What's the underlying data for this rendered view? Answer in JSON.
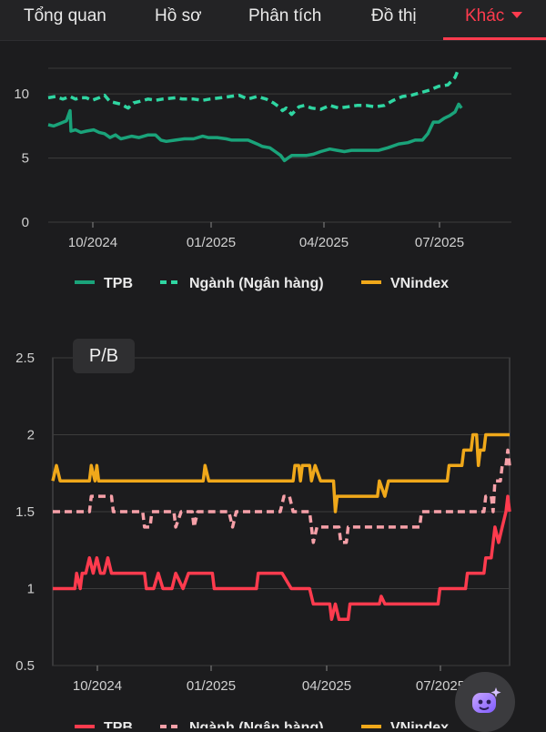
{
  "nav": {
    "tabs": [
      {
        "label": "Tổng quan"
      },
      {
        "label": "Hồ sơ"
      },
      {
        "label": "Phân tích"
      },
      {
        "label": "Đồ thị"
      },
      {
        "label": "Khác"
      }
    ],
    "active_tab": "Khác",
    "accent_color": "#ff3b4e"
  },
  "chart_data": [
    {
      "type": "line",
      "title": "",
      "xlabel": "",
      "ylabel": "",
      "y_ticks": [
        "0",
        "5",
        "10"
      ],
      "ylim": [
        0,
        12
      ],
      "x_ticks": [
        "10/2024",
        "01/2025",
        "04/2025",
        "07/2025"
      ],
      "legend_placement": "bottom",
      "series": [
        {
          "name": "TPB",
          "color": "#1aa37a",
          "style": "solid",
          "points": [
            [
              0,
              7.6
            ],
            [
              6,
              7.5
            ],
            [
              13,
              7.7
            ],
            [
              20,
              7.9
            ],
            [
              24,
              8.7
            ],
            [
              25,
              7.1
            ],
            [
              30,
              7.2
            ],
            [
              36,
              7.0
            ],
            [
              42,
              7.1
            ],
            [
              50,
              7.2
            ],
            [
              56,
              7.0
            ],
            [
              62,
              6.9
            ],
            [
              68,
              6.6
            ],
            [
              74,
              6.8
            ],
            [
              80,
              6.5
            ],
            [
              86,
              6.6
            ],
            [
              92,
              6.7
            ],
            [
              100,
              6.6
            ],
            [
              110,
              6.8
            ],
            [
              118,
              6.8
            ],
            [
              124,
              6.4
            ],
            [
              130,
              6.3
            ],
            [
              140,
              6.4
            ],
            [
              150,
              6.5
            ],
            [
              160,
              6.5
            ],
            [
              170,
              6.7
            ],
            [
              176,
              6.6
            ],
            [
              186,
              6.6
            ],
            [
              196,
              6.5
            ],
            [
              202,
              6.4
            ],
            [
              210,
              6.4
            ],
            [
              220,
              6.4
            ],
            [
              230,
              6.1
            ],
            [
              236,
              5.9
            ],
            [
              244,
              5.8
            ],
            [
              250,
              5.5
            ],
            [
              256,
              5.2
            ],
            [
              260,
              4.8
            ],
            [
              264,
              5.0
            ],
            [
              268,
              5.2
            ],
            [
              274,
              5.2
            ],
            [
              284,
              5.2
            ],
            [
              292,
              5.3
            ],
            [
              300,
              5.5
            ],
            [
              310,
              5.7
            ],
            [
              318,
              5.6
            ],
            [
              326,
              5.5
            ],
            [
              334,
              5.6
            ],
            [
              344,
              5.6
            ],
            [
              354,
              5.6
            ],
            [
              364,
              5.6
            ],
            [
              374,
              5.8
            ],
            [
              386,
              6.1
            ],
            [
              396,
              6.2
            ],
            [
              404,
              6.4
            ],
            [
              412,
              6.4
            ],
            [
              418,
              6.9
            ],
            [
              424,
              7.8
            ],
            [
              430,
              7.8
            ],
            [
              436,
              8.1
            ],
            [
              442,
              8.3
            ],
            [
              448,
              8.6
            ],
            [
              452,
              9.2
            ],
            [
              455,
              8.9
            ]
          ]
        },
        {
          "name": "Ngành (Ngân hàng)",
          "color": "#2fd6a2",
          "style": "dashed",
          "points": [
            [
              0,
              9.7
            ],
            [
              8,
              9.8
            ],
            [
              16,
              9.6
            ],
            [
              24,
              9.8
            ],
            [
              30,
              9.6
            ],
            [
              36,
              9.7
            ],
            [
              42,
              9.7
            ],
            [
              48,
              9.5
            ],
            [
              56,
              9.7
            ],
            [
              62,
              9.9
            ],
            [
              68,
              9.4
            ],
            [
              74,
              9.3
            ],
            [
              80,
              9.2
            ],
            [
              88,
              8.9
            ],
            [
              94,
              9.3
            ],
            [
              100,
              9.4
            ],
            [
              110,
              9.6
            ],
            [
              118,
              9.5
            ],
            [
              126,
              9.6
            ],
            [
              140,
              9.7
            ],
            [
              148,
              9.6
            ],
            [
              160,
              9.6
            ],
            [
              170,
              9.5
            ],
            [
              178,
              9.6
            ],
            [
              190,
              9.7
            ],
            [
              200,
              9.8
            ],
            [
              210,
              9.9
            ],
            [
              220,
              9.6
            ],
            [
              230,
              9.8
            ],
            [
              240,
              9.6
            ],
            [
              248,
              9.3
            ],
            [
              254,
              9.0
            ],
            [
              258,
              8.7
            ],
            [
              262,
              8.9
            ],
            [
              268,
              8.4
            ],
            [
              276,
              9.0
            ],
            [
              282,
              9.1
            ],
            [
              290,
              8.9
            ],
            [
              300,
              8.8
            ],
            [
              310,
              9.1
            ],
            [
              320,
              8.9
            ],
            [
              330,
              9.0
            ],
            [
              340,
              9.1
            ],
            [
              350,
              9.1
            ],
            [
              360,
              9.0
            ],
            [
              370,
              9.1
            ],
            [
              380,
              9.5
            ],
            [
              390,
              9.8
            ],
            [
              400,
              9.9
            ],
            [
              410,
              10.1
            ],
            [
              420,
              10.3
            ],
            [
              430,
              10.6
            ],
            [
              440,
              10.7
            ],
            [
              448,
              11.3
            ],
            [
              452,
              12.0
            ]
          ]
        },
        {
          "name": "VNindex",
          "color": "#f0a81a",
          "style": "solid",
          "points": []
        }
      ]
    },
    {
      "type": "line",
      "title": "P/B",
      "xlabel": "",
      "ylabel": "",
      "y_ticks": [
        "0.5",
        "1",
        "1.5",
        "2",
        "2.5"
      ],
      "ylim": [
        0.5,
        2.5
      ],
      "x_ticks": [
        "10/2024",
        "01/2025",
        "04/2025",
        "07/2025"
      ],
      "legend_placement": "bottom",
      "series": [
        {
          "name": "TPB",
          "color": "#ff3b4e",
          "style": "solid",
          "points": [
            [
              0,
              1.0
            ],
            [
              24,
              1.0
            ],
            [
              26,
              1.1
            ],
            [
              30,
              1.0
            ],
            [
              32,
              1.1
            ],
            [
              36,
              1.1
            ],
            [
              40,
              1.2
            ],
            [
              44,
              1.1
            ],
            [
              48,
              1.2
            ],
            [
              52,
              1.1
            ],
            [
              56,
              1.1
            ],
            [
              60,
              1.2
            ],
            [
              64,
              1.1
            ],
            [
              70,
              1.1
            ],
            [
              80,
              1.1
            ],
            [
              100,
              1.1
            ],
            [
              102,
              1.0
            ],
            [
              110,
              1.0
            ],
            [
              115,
              1.1
            ],
            [
              120,
              1.0
            ],
            [
              130,
              1.0
            ],
            [
              134,
              1.1
            ],
            [
              142,
              1.0
            ],
            [
              148,
              1.1
            ],
            [
              160,
              1.1
            ],
            [
              174,
              1.1
            ],
            [
              176,
              1.0
            ],
            [
              222,
              1.0
            ],
            [
              224,
              1.1
            ],
            [
              240,
              1.1
            ],
            [
              250,
              1.1
            ],
            [
              260,
              1.0
            ],
            [
              280,
              1.0
            ],
            [
              284,
              0.9
            ],
            [
              302,
              0.9
            ],
            [
              304,
              0.8
            ],
            [
              308,
              0.9
            ],
            [
              312,
              0.8
            ],
            [
              322,
              0.8
            ],
            [
              324,
              0.9
            ],
            [
              356,
              0.9
            ],
            [
              358,
              0.95
            ],
            [
              362,
              0.9
            ],
            [
              420,
              0.9
            ],
            [
              422,
              1.0
            ],
            [
              450,
              1.0
            ],
            [
              452,
              1.1
            ],
            [
              470,
              1.1
            ],
            [
              472,
              1.2
            ],
            [
              478,
              1.2
            ],
            [
              480,
              1.3
            ],
            [
              482,
              1.4
            ],
            [
              486,
              1.3
            ],
            [
              490,
              1.4
            ],
            [
              494,
              1.5
            ],
            [
              496,
              1.6
            ],
            [
              498,
              1.5
            ]
          ]
        },
        {
          "name": "Ngành (Ngân hàng)",
          "color": "#f6a0a8",
          "style": "dashed",
          "points": [
            [
              0,
              1.5
            ],
            [
              40,
              1.5
            ],
            [
              42,
              1.6
            ],
            [
              64,
              1.6
            ],
            [
              66,
              1.5
            ],
            [
              98,
              1.5
            ],
            [
              100,
              1.4
            ],
            [
              106,
              1.4
            ],
            [
              108,
              1.5
            ],
            [
              132,
              1.5
            ],
            [
              134,
              1.4
            ],
            [
              140,
              1.5
            ],
            [
              152,
              1.5
            ],
            [
              154,
              1.4
            ],
            [
              158,
              1.5
            ],
            [
              192,
              1.5
            ],
            [
              196,
              1.4
            ],
            [
              200,
              1.5
            ],
            [
              248,
              1.5
            ],
            [
              252,
              1.6
            ],
            [
              258,
              1.6
            ],
            [
              262,
              1.5
            ],
            [
              280,
              1.5
            ],
            [
              284,
              1.3
            ],
            [
              288,
              1.4
            ],
            [
              312,
              1.4
            ],
            [
              314,
              1.3
            ],
            [
              320,
              1.3
            ],
            [
              322,
              1.4
            ],
            [
              400,
              1.4
            ],
            [
              402,
              1.5
            ],
            [
              470,
              1.5
            ],
            [
              472,
              1.6
            ],
            [
              478,
              1.6
            ],
            [
              480,
              1.5
            ],
            [
              482,
              1.7
            ],
            [
              488,
              1.7
            ],
            [
              490,
              1.8
            ],
            [
              494,
              1.8
            ],
            [
              496,
              1.9
            ],
            [
              498,
              1.8
            ]
          ]
        },
        {
          "name": "VNindex",
          "color": "#f0a81a",
          "style": "solid",
          "points": [
            [
              0,
              1.7
            ],
            [
              4,
              1.8
            ],
            [
              8,
              1.7
            ],
            [
              40,
              1.7
            ],
            [
              42,
              1.8
            ],
            [
              46,
              1.7
            ],
            [
              48,
              1.8
            ],
            [
              50,
              1.7
            ],
            [
              164,
              1.7
            ],
            [
              166,
              1.8
            ],
            [
              170,
              1.7
            ],
            [
              262,
              1.7
            ],
            [
              264,
              1.8
            ],
            [
              268,
              1.8
            ],
            [
              270,
              1.7
            ],
            [
              272,
              1.8
            ],
            [
              280,
              1.8
            ],
            [
              282,
              1.7
            ],
            [
              286,
              1.8
            ],
            [
              292,
              1.7
            ],
            [
              306,
              1.7
            ],
            [
              308,
              1.5
            ],
            [
              310,
              1.6
            ],
            [
              314,
              1.6
            ],
            [
              354,
              1.6
            ],
            [
              356,
              1.7
            ],
            [
              362,
              1.6
            ],
            [
              366,
              1.7
            ],
            [
              430,
              1.7
            ],
            [
              432,
              1.8
            ],
            [
              446,
              1.8
            ],
            [
              448,
              1.9
            ],
            [
              456,
              1.9
            ],
            [
              458,
              2.0
            ],
            [
              462,
              2.0
            ],
            [
              464,
              1.8
            ],
            [
              466,
              1.9
            ],
            [
              470,
              1.9
            ],
            [
              472,
              2.0
            ],
            [
              498,
              2.0
            ]
          ]
        }
      ]
    }
  ],
  "fab_icon": "assistant-robot-icon"
}
